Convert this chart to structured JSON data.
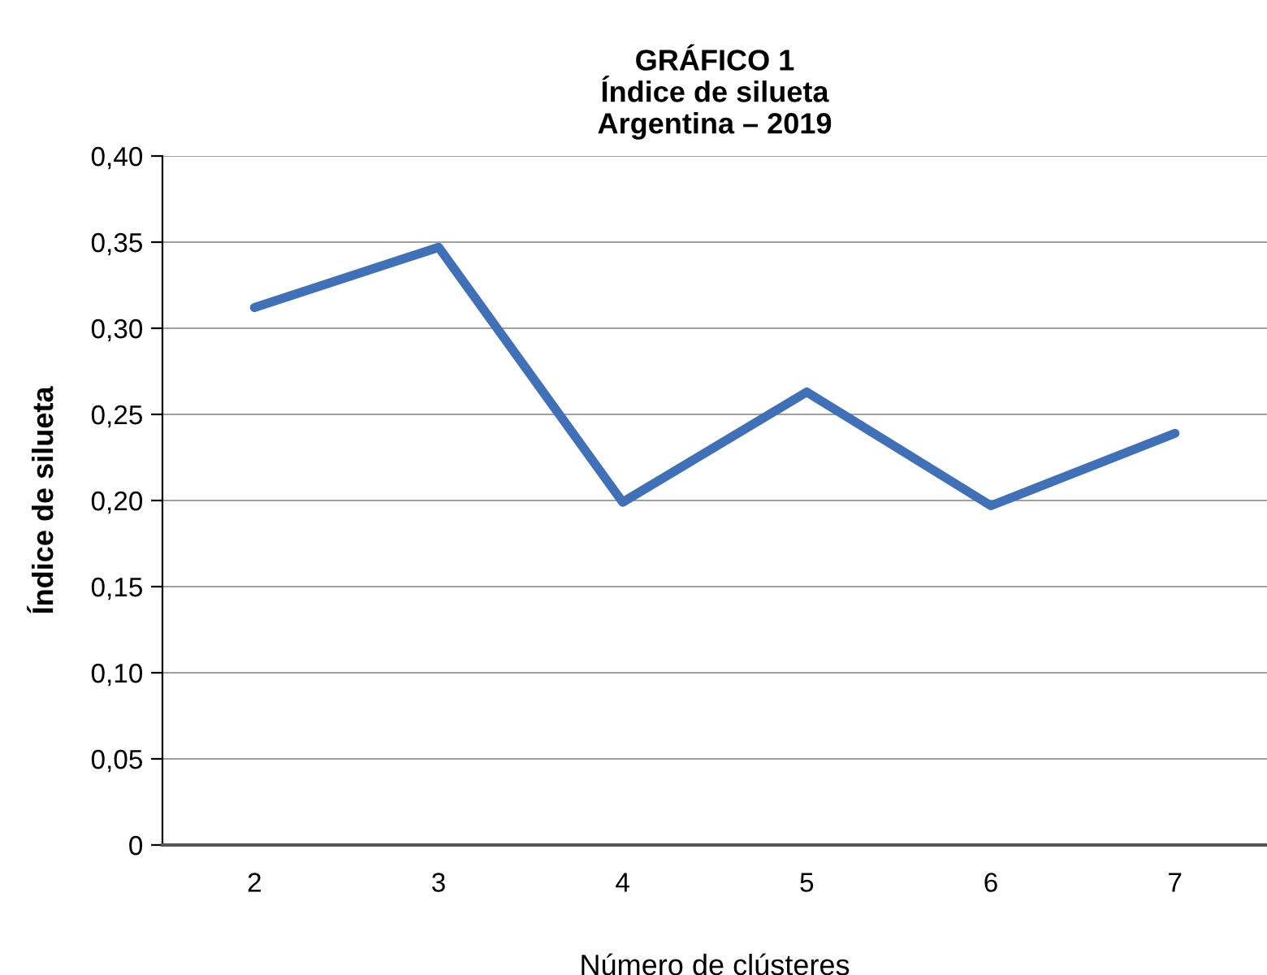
{
  "chart_data": {
    "type": "line",
    "title": "GRÁFICO 1\nÍndice de silueta\nArgentina – 2019",
    "xlabel": "Número de clústeres",
    "ylabel": "Índice de silueta",
    "categories": [
      "2",
      "3",
      "4",
      "5",
      "6",
      "7"
    ],
    "series": [
      {
        "color": "#3f70b8",
        "values": [
          0.312,
          0.347,
          0.199,
          0.263,
          0.197,
          0.239
        ]
      }
    ],
    "ylim": [
      0,
      0.4
    ],
    "yticks": [
      0,
      {
        "value": 0.05,
        "label": "0,05"
      },
      {
        "value": 0.1,
        "label": "0,10"
      },
      {
        "value": 0.15,
        "label": "0,15"
      },
      {
        "value": 0.2,
        "label": "0,20"
      },
      {
        "value": 0.25,
        "label": "0,25"
      },
      {
        "value": 0.3,
        "label": "0,30"
      },
      {
        "value": 0.35,
        "label": "0,35"
      },
      {
        "value": 0.4,
        "label": "0,40"
      }
    ],
    "grid": "y",
    "marker": "none",
    "line_style": "solid",
    "legend": false
  }
}
